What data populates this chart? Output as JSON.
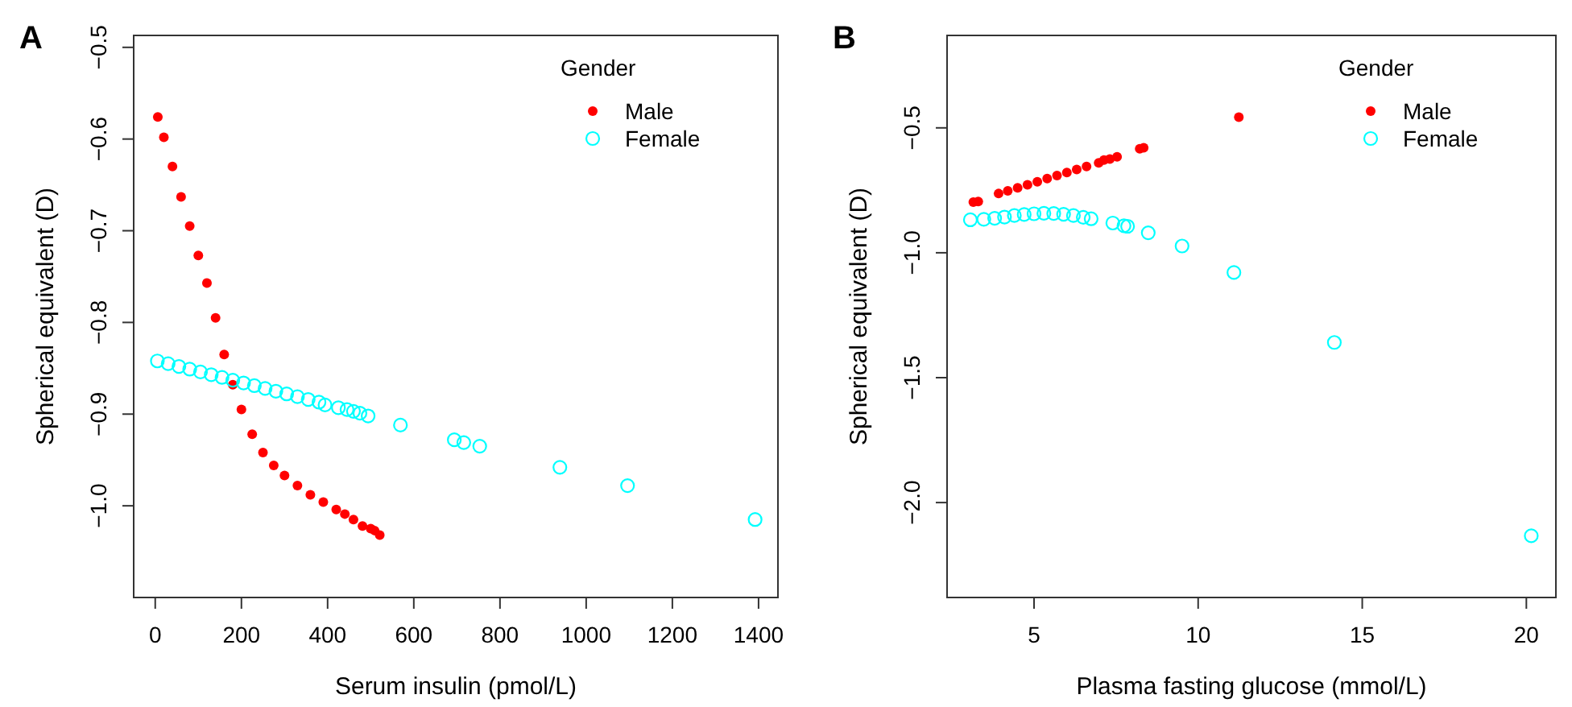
{
  "chart_data": [
    {
      "type": "scatter",
      "title": "A",
      "xlabel": "Serum insulin (pmol/L)",
      "ylabel": "Spherical equivalent (D)",
      "legend_title": "Gender",
      "legend": "top right",
      "grid": false,
      "marker": "circle",
      "xlim": [
        -50,
        1445
      ],
      "xticks": [
        0,
        200,
        400,
        600,
        800,
        1000,
        1200,
        1400
      ],
      "ylim": [
        -1.1,
        -0.487
      ],
      "yticks": [
        {
          "value": -1.0,
          "label": "−1.0"
        },
        {
          "value": -0.9,
          "label": "−0.9"
        },
        {
          "value": -0.8,
          "label": "−0.8"
        },
        {
          "value": -0.7,
          "label": "−0.7"
        },
        {
          "value": -0.6,
          "label": "−0.6"
        },
        {
          "value": -0.5,
          "label": "−0.5"
        }
      ],
      "series": [
        {
          "name": "Male",
          "color": "#ff0000",
          "x": [
            6,
            20,
            40,
            60,
            80,
            100,
            120,
            140,
            160,
            180,
            200,
            225,
            250,
            275,
            300,
            330,
            360,
            390,
            420,
            440,
            460,
            481,
            500,
            509,
            521
          ],
          "values": [
            -0.576,
            -0.598,
            -0.63,
            -0.663,
            -0.695,
            -0.727,
            -0.757,
            -0.795,
            -0.835,
            -0.868,
            -0.895,
            -0.922,
            -0.942,
            -0.956,
            -0.967,
            -0.978,
            -0.988,
            -0.996,
            -1.004,
            -1.009,
            -1.015,
            -1.022,
            -1.025,
            -1.027,
            -1.032
          ]
        },
        {
          "name": "Female",
          "color": "#00ffff",
          "x": [
            5,
            30,
            55,
            80,
            105,
            130,
            155,
            180,
            205,
            230,
            255,
            280,
            305,
            330,
            355,
            380,
            394,
            425,
            445,
            460,
            475,
            494,
            569,
            694,
            716,
            753,
            939,
            1096,
            1392
          ],
          "values": [
            -0.842,
            -0.845,
            -0.848,
            -0.851,
            -0.854,
            -0.857,
            -0.86,
            -0.863,
            -0.866,
            -0.869,
            -0.872,
            -0.875,
            -0.878,
            -0.881,
            -0.884,
            -0.887,
            -0.89,
            -0.893,
            -0.895,
            -0.897,
            -0.899,
            -0.902,
            -0.912,
            -0.928,
            -0.931,
            -0.935,
            -0.958,
            -0.978,
            -1.015
          ]
        }
      ]
    },
    {
      "type": "scatter",
      "title": "B",
      "xlabel": "Plasma fasting glucose (mmol/L)",
      "ylabel": "Spherical equivalent (D)",
      "legend_title": "Gender",
      "legend": "top right",
      "grid": false,
      "marker": "circle",
      "xlim": [
        2.35,
        20.9
      ],
      "xticks": [
        5,
        10,
        15,
        20
      ],
      "ylim": [
        -2.38,
        -0.13
      ],
      "yticks": [
        {
          "value": -2.0,
          "label": "−2.0"
        },
        {
          "value": -1.5,
          "label": "−1.5"
        },
        {
          "value": -1.0,
          "label": "−1.0"
        },
        {
          "value": -0.5,
          "label": "−0.5"
        }
      ],
      "series": [
        {
          "name": "Male",
          "color": "#ff0000",
          "x": [
            3.15,
            3.3,
            3.92,
            4.2,
            4.5,
            4.8,
            5.1,
            5.4,
            5.7,
            6.0,
            6.3,
            6.6,
            6.97,
            7.13,
            7.31,
            7.53,
            8.22,
            8.34,
            11.24
          ],
          "values": [
            -0.797,
            -0.795,
            -0.763,
            -0.752,
            -0.74,
            -0.728,
            -0.716,
            -0.703,
            -0.691,
            -0.679,
            -0.667,
            -0.655,
            -0.64,
            -0.629,
            -0.625,
            -0.616,
            -0.584,
            -0.58,
            -0.457
          ]
        },
        {
          "name": "Female",
          "color": "#00ffff",
          "x": [
            3.06,
            3.47,
            3.8,
            4.1,
            4.4,
            4.7,
            5.0,
            5.3,
            5.6,
            5.9,
            6.2,
            6.5,
            6.74,
            7.4,
            7.74,
            7.85,
            8.48,
            9.51,
            11.09,
            14.15,
            20.15
          ],
          "values": [
            -0.868,
            -0.866,
            -0.862,
            -0.857,
            -0.851,
            -0.847,
            -0.844,
            -0.842,
            -0.843,
            -0.846,
            -0.851,
            -0.858,
            -0.864,
            -0.881,
            -0.892,
            -0.894,
            -0.92,
            -0.973,
            -1.079,
            -1.359,
            -2.133
          ]
        }
      ]
    }
  ]
}
